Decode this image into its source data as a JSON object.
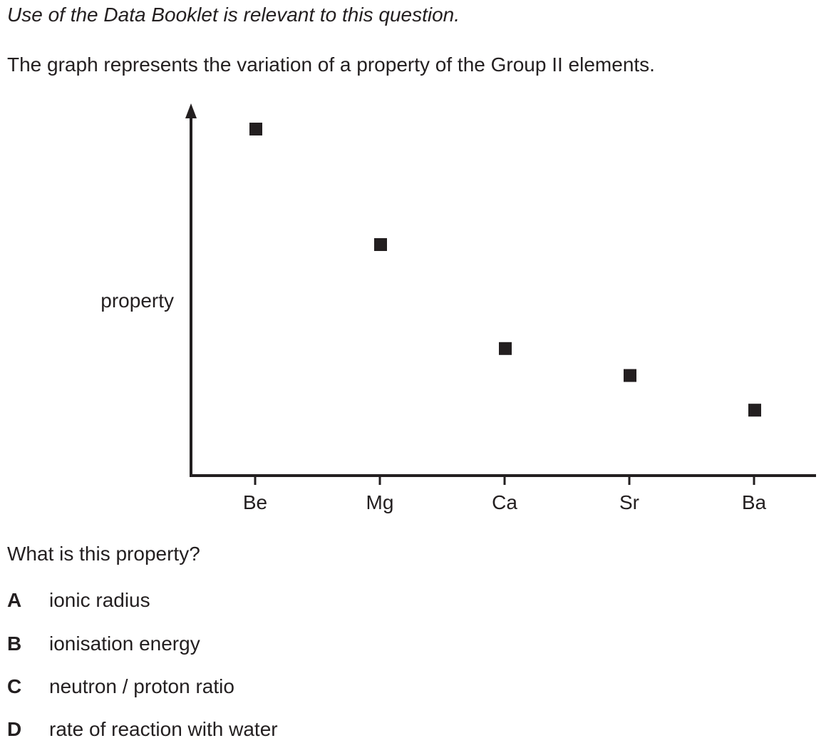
{
  "intro": "Use of the Data Booklet is relevant to this question.",
  "stem": "The graph represents the variation of a property of the Group II elements.",
  "chart_data": {
    "type": "scatter",
    "title": "",
    "xlabel": "",
    "ylabel": "property",
    "categories": [
      "Be",
      "Mg",
      "Ca",
      "Sr",
      "Ba"
    ],
    "values": [
      0.9,
      0.6,
      0.33,
      0.26,
      0.17
    ],
    "ylim": [
      0,
      1
    ],
    "y_ticks_shown": false,
    "grid": false,
    "legend": "none",
    "marker": "square",
    "marker_color": "#231f20"
  },
  "question": "What is this property?",
  "options": [
    {
      "letter": "A",
      "text": "ionic radius"
    },
    {
      "letter": "B",
      "text": "ionisation energy"
    },
    {
      "letter": "C",
      "text": "neutron / proton ratio"
    },
    {
      "letter": "D",
      "text": "rate of reaction with water"
    }
  ]
}
